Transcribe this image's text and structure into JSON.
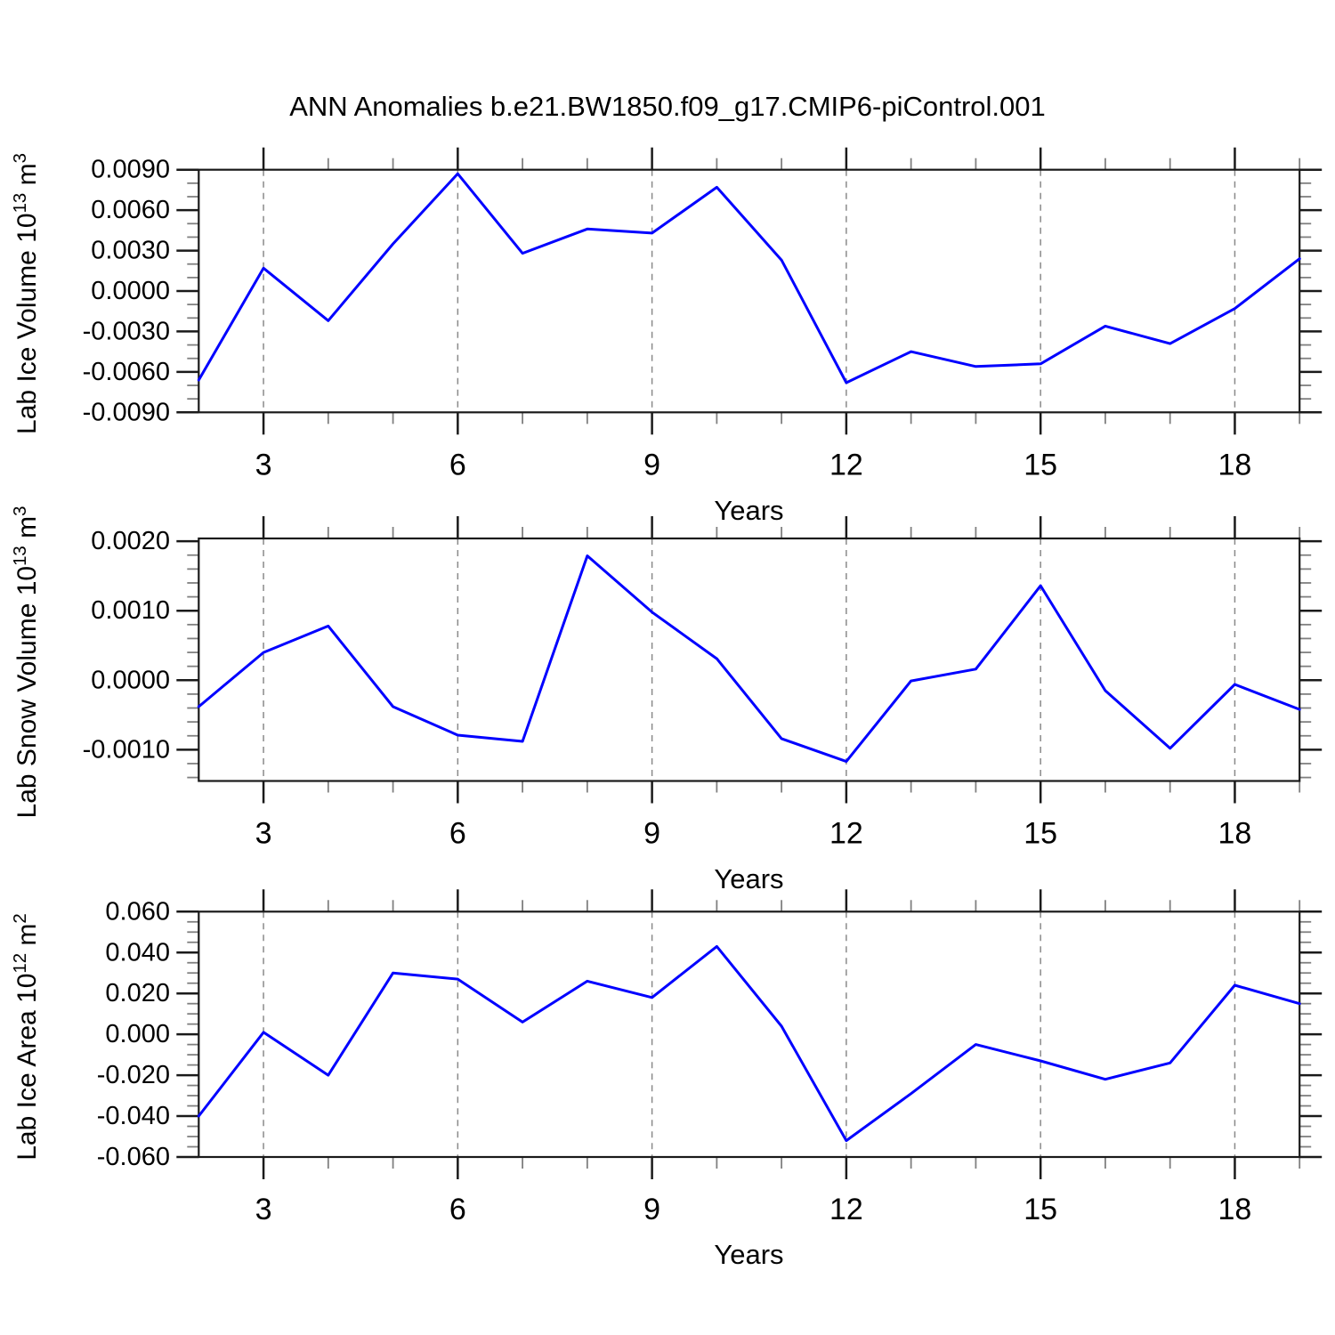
{
  "page": {
    "title": "ANN Anomalies b.e21.BW1850.f09_g17.CMIP6-piControl.001"
  },
  "colors": {
    "line": "#0000ff",
    "frame": "#1a1a1a",
    "major_tick": "#1a1a1a",
    "minor_tick": "#808080",
    "gridline": "#8a8a8a",
    "text": "#000000"
  },
  "x_axis": {
    "title": "Years",
    "min": 2,
    "max": 19,
    "major_ticks": [
      3,
      6,
      9,
      12,
      15,
      18
    ],
    "tick_labels": [
      "3",
      "6",
      "9",
      "12",
      "15",
      "18"
    ],
    "minor_ticks": [
      4,
      5,
      7,
      8,
      10,
      11,
      13,
      14,
      16,
      17,
      19
    ],
    "gridlines_at": [
      3,
      6,
      9,
      12,
      15,
      18
    ],
    "grid_style": "vertical-dashed"
  },
  "chart_data": [
    {
      "type": "line",
      "name": "lab-ice-volume",
      "ylabel": {
        "prefix": "Lab Ice Volume 10",
        "power": "13",
        "unit": " m",
        "unit_power": "3"
      },
      "xlabel": "Years",
      "x": [
        2,
        3,
        4,
        5,
        6,
        7,
        8,
        9,
        10,
        11,
        12,
        13,
        14,
        15,
        16,
        17,
        18,
        19
      ],
      "values": [
        -0.0066,
        0.0017,
        -0.0022,
        0.0035,
        0.0087,
        0.0028,
        0.0046,
        0.0043,
        0.0077,
        0.0023,
        -0.0068,
        -0.0045,
        -0.0056,
        -0.0054,
        -0.0026,
        -0.0039,
        -0.0013,
        0.0024
      ],
      "ylim": [
        -0.009,
        0.009
      ],
      "y_major_ticks": [
        0.009,
        0.006,
        0.003,
        0.0,
        -0.003,
        -0.006,
        -0.009
      ],
      "y_tick_labels": [
        "0.0090",
        "0.0060",
        "0.0030",
        "0.0000",
        "-0.0030",
        "-0.0060",
        "-0.0090"
      ],
      "y_minor_step": 0.001,
      "legend": "none"
    },
    {
      "type": "line",
      "name": "lab-snow-volume",
      "ylabel": {
        "prefix": "Lab Snow Volume 10",
        "power": "13",
        "unit": " m",
        "unit_power": "3"
      },
      "xlabel": "Years",
      "x": [
        2,
        3,
        4,
        5,
        6,
        7,
        8,
        9,
        10,
        11,
        12,
        13,
        14,
        15,
        16,
        17,
        18,
        19
      ],
      "values": [
        -0.00038,
        0.0004,
        0.00078,
        -0.00038,
        -0.00079,
        -0.00088,
        0.00179,
        0.00098,
        0.00031,
        -0.00084,
        -0.00117,
        -1e-05,
        0.00016,
        0.00136,
        -0.00015,
        -0.00098,
        -6e-05,
        -0.00042
      ],
      "ylim": [
        -0.00145,
        0.00204
      ],
      "y_major_ticks": [
        0.002,
        0.001,
        0.0,
        -0.001
      ],
      "y_tick_labels": [
        "0.0020",
        "0.0010",
        "0.0000",
        "-0.0010"
      ],
      "y_minor_step": 0.0002,
      "legend": "none"
    },
    {
      "type": "line",
      "name": "lab-ice-area",
      "ylabel": {
        "prefix": "Lab Ice Area 10",
        "power": "12",
        "unit": " m",
        "unit_power": "2"
      },
      "xlabel": "Years",
      "x": [
        2,
        3,
        4,
        5,
        6,
        7,
        8,
        9,
        10,
        11,
        12,
        13,
        14,
        15,
        16,
        17,
        18,
        19
      ],
      "values": [
        -0.04,
        0.001,
        -0.02,
        0.03,
        0.027,
        0.006,
        0.026,
        0.018,
        0.043,
        0.004,
        -0.052,
        -0.029,
        -0.005,
        -0.013,
        -0.022,
        -0.014,
        0.024,
        0.015
      ],
      "ylim": [
        -0.06,
        0.06
      ],
      "y_major_ticks": [
        0.06,
        0.04,
        0.02,
        0.0,
        -0.02,
        -0.04,
        -0.06
      ],
      "y_tick_labels": [
        "0.060",
        "0.040",
        "0.020",
        "0.000",
        "-0.020",
        "-0.040",
        "-0.060"
      ],
      "y_minor_step": 0.005,
      "legend": "none"
    }
  ]
}
